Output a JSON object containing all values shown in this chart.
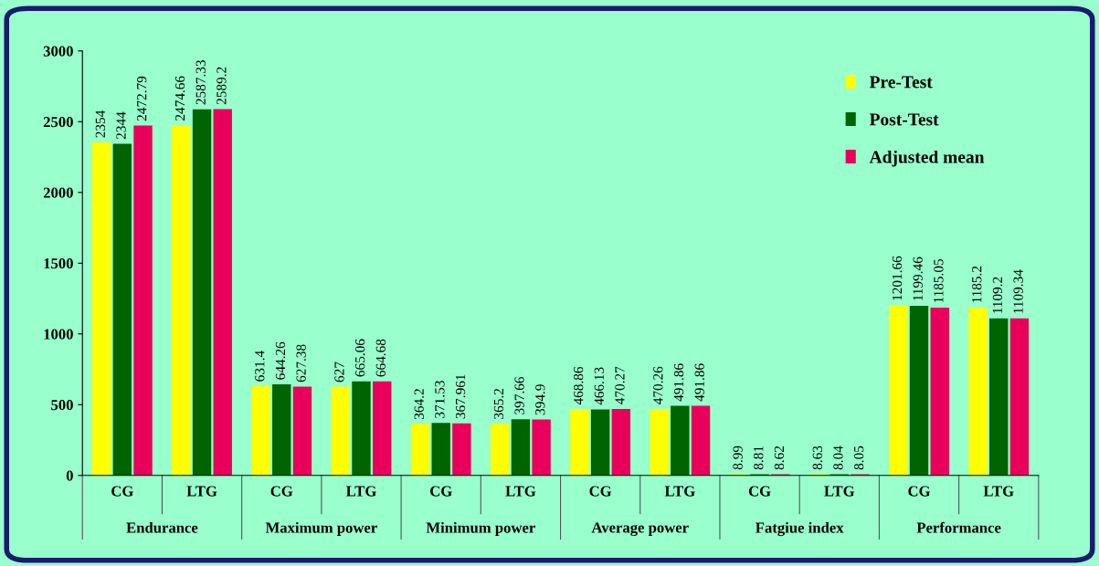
{
  "chart_data": {
    "type": "bar",
    "categories": [
      "CG",
      "LTG",
      "CG",
      "LTG",
      "CG",
      "LTG",
      "CG",
      "LTG",
      "CG",
      "LTG",
      "CG",
      "LTG"
    ],
    "annotations": [
      "Endurance",
      "Maximum power",
      "Minimum power",
      "Average power",
      "Fatgiue index",
      "Performance"
    ],
    "series": [
      {
        "name": "Pre-Test",
        "color": "#ffff00",
        "values": [
          2354,
          2474.66,
          631.4,
          627,
          364.2,
          365.2,
          468.86,
          470.26,
          8.99,
          8.63,
          1201.66,
          1185.2
        ]
      },
      {
        "name": "Post-Test",
        "color": "#006400",
        "values": [
          2344,
          2587.33,
          644.26,
          665.06,
          371.53,
          397.66,
          466.13,
          491.86,
          8.81,
          8.04,
          1199.46,
          1109.2
        ]
      },
      {
        "name": "Adjusted mean",
        "color": "#e8005a",
        "values": [
          2472.79,
          2589.2,
          627.38,
          664.68,
          367.961,
          394.9,
          470.27,
          491.86,
          8.62,
          8.05,
          1185.05,
          1109.34
        ]
      }
    ],
    "ylim": [
      0,
      3000
    ],
    "yticks": [
      0,
      500,
      1000,
      1500,
      2000,
      2500,
      3000
    ],
    "data_labels": true,
    "grid": false,
    "legend": "top right"
  }
}
